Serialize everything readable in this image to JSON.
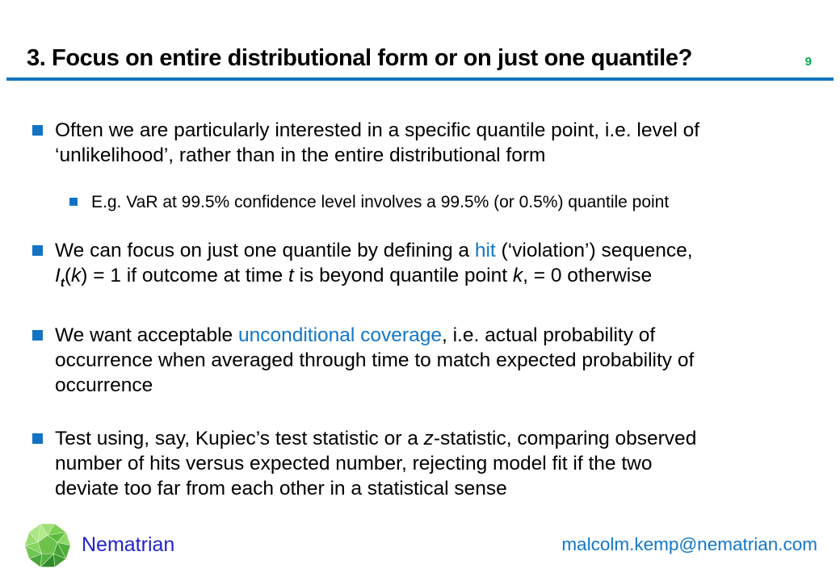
{
  "slide": {
    "title": "3. Focus on entire distributional form or on just one quantile?",
    "page_number": "9",
    "accent_blue": "#1373c2",
    "page_number_green": "#00a651"
  },
  "bullets": [
    {
      "level": 1,
      "segments": [
        {
          "t": "Often we are particularly interested in a specific quantile point, i.e. level of"
        },
        {
          "br": true
        },
        {
          "t": "‘unlikelihood’, rather than in the entire distributional form"
        }
      ]
    },
    {
      "level": 2,
      "segments": [
        {
          "t": "E.g. VaR at 99.5% confidence level involves a 99.5% (or 0.5%) quantile point"
        }
      ]
    },
    {
      "level": 1,
      "segments": [
        {
          "t": "We can focus on just one quantile by defining a "
        },
        {
          "t": "hit",
          "s": "link"
        },
        {
          "t": " (‘violation’) sequence,"
        },
        {
          "br": true
        },
        {
          "t": "I",
          "s": "i"
        },
        {
          "t": "t",
          "s": "sub"
        },
        {
          "t": "("
        },
        {
          "t": "k",
          "s": "i"
        },
        {
          "t": ") = 1 if outcome at time "
        },
        {
          "t": "t",
          "s": "i"
        },
        {
          "t": " is beyond quantile point "
        },
        {
          "t": "k",
          "s": "i"
        },
        {
          "t": ", = 0 otherwise"
        }
      ]
    },
    {
      "level": 1,
      "segments": [
        {
          "t": "We want acceptable "
        },
        {
          "t": "unconditional coverage",
          "s": "link"
        },
        {
          "t": ", i.e. actual probability of"
        },
        {
          "br": true
        },
        {
          "t": "occurrence when averaged through time to match expected probability of"
        },
        {
          "br": true
        },
        {
          "t": "occurrence"
        }
      ]
    },
    {
      "level": 1,
      "segments": [
        {
          "t": "Test using, say, Kupiec’s test statistic or a "
        },
        {
          "t": "z",
          "s": "i"
        },
        {
          "t": "-statistic, comparing observed"
        },
        {
          "br": true
        },
        {
          "t": "number of hits versus expected number, rejecting model fit if the two"
        },
        {
          "br": true
        },
        {
          "t": "deviate too far from each other in a statistical sense"
        }
      ]
    }
  ],
  "footer": {
    "brand": "Nematrian",
    "email": "malcolm.kemp@nematrian.com",
    "logo_icon": "green-polyhedron-logo"
  }
}
